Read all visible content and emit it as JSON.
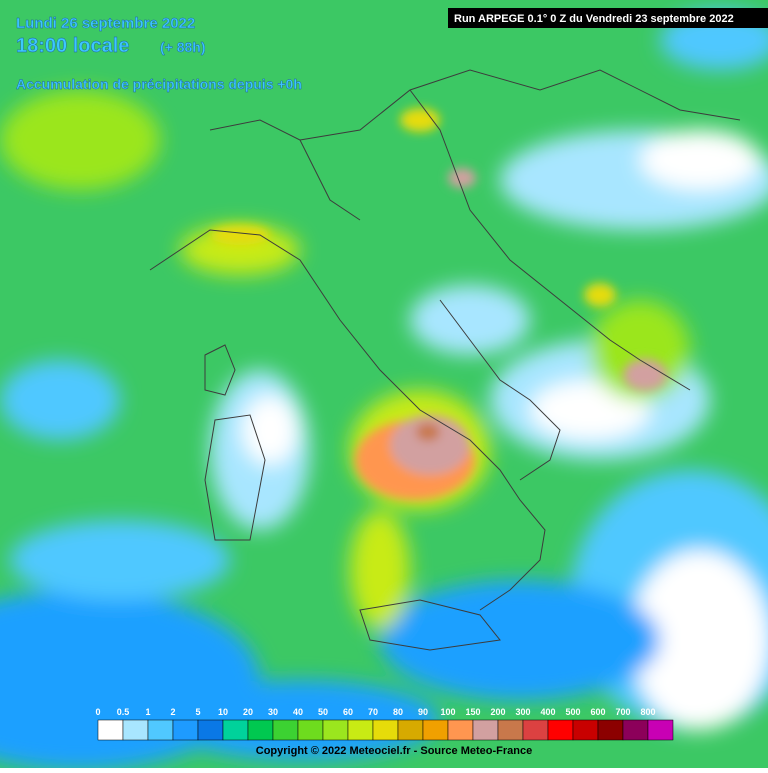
{
  "header": {
    "date": "Lundi 26 septembre 2022",
    "time": "18:00 locale",
    "lead": "(+ 88h)",
    "product": "Accumulation de précipitations depuis +0h",
    "run": "Run ARPEGE 0.1° 0 Z du Vendredi 23 septembre 2022"
  },
  "legend": {
    "labels": [
      0,
      0.5,
      1,
      2,
      5,
      10,
      20,
      30,
      40,
      50,
      60,
      70,
      80,
      90,
      100,
      150,
      200,
      300,
      400,
      500,
      600,
      700,
      800
    ],
    "colors": [
      "#ffffff",
      "#a8e6ff",
      "#50c8ff",
      "#1e9bff",
      "#0a78e6",
      "#00d29b",
      "#00c850",
      "#3cd232",
      "#6edc1e",
      "#9be61e",
      "#c8eb14",
      "#e6dc0a",
      "#d7aa00",
      "#f0a000",
      "#ff9650",
      "#d2a0a0",
      "#c8784b",
      "#dc4141",
      "#ff0000",
      "#c80000",
      "#8c0000",
      "#8c005a",
      "#c800b4"
    ]
  },
  "footer": {
    "copyright": "Copyright © 2022 Meteociel.fr - Source Meteo-France"
  }
}
